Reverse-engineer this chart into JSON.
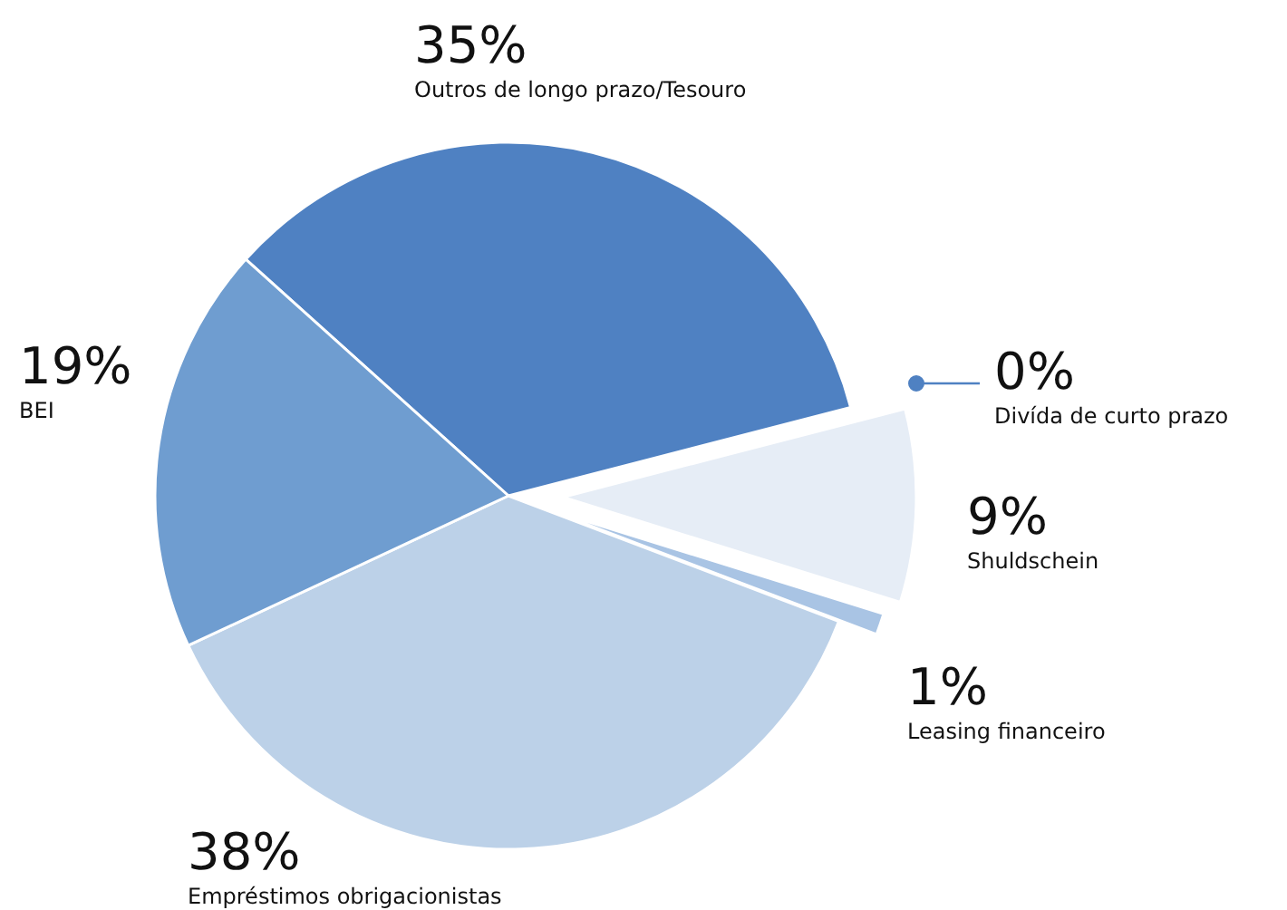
{
  "chart_data": {
    "type": "pie",
    "categories": [
      "Outros de longo prazo/Tesouro",
      "Divída de curto prazo",
      "Shuldschein",
      "Leasing financeiro",
      "Empréstimos obrigacionistas",
      "BEI"
    ],
    "values": [
      35,
      0,
      9,
      1,
      38,
      19
    ],
    "value_labels": [
      "35%",
      "0%",
      "9%",
      "1%",
      "38%",
      "19%"
    ],
    "colors": [
      "#4f81c2",
      "#4f81c2",
      "#e6edf6",
      "#a9c4e4",
      "#bcd1e8",
      "#6f9dd0"
    ]
  }
}
